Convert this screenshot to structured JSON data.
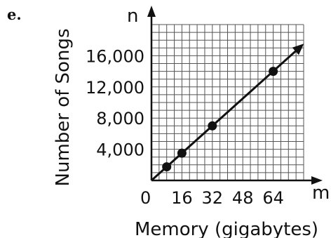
{
  "part_label": "e.",
  "chart_data": {
    "type": "line",
    "title": "",
    "xlabel": "Memory (gigabytes)",
    "ylabel": "Number of Songs",
    "x_var": "m",
    "y_var": "n",
    "origin_label": "0",
    "xlim": [
      0,
      80
    ],
    "ylim": [
      0,
      20000
    ],
    "grid": true,
    "x_ticks": [
      {
        "value": 16,
        "label": "16"
      },
      {
        "value": 32,
        "label": "32"
      },
      {
        "value": 48,
        "label": "48"
      },
      {
        "value": 64,
        "label": "64"
      }
    ],
    "y_ticks": [
      {
        "value": 4000,
        "label": "4,000"
      },
      {
        "value": 8000,
        "label": "8,000"
      },
      {
        "value": 12000,
        "label": "12,000"
      },
      {
        "value": 16000,
        "label": "16,000"
      }
    ],
    "points": [
      {
        "x": 8,
        "y": 1750
      },
      {
        "x": 16,
        "y": 3500
      },
      {
        "x": 32,
        "y": 7000
      },
      {
        "x": 64,
        "y": 14000
      }
    ],
    "line": {
      "from": {
        "x": 0,
        "y": 0
      },
      "to": {
        "x": 79,
        "y": 17300
      },
      "arrow": true
    }
  }
}
